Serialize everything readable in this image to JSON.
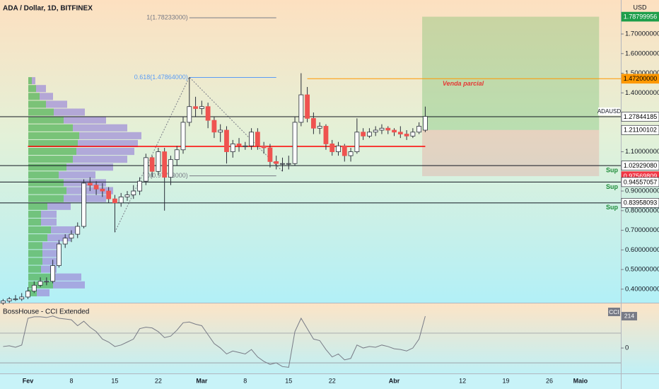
{
  "chart_data": [
    {
      "type": "candlestick",
      "title": "ADA / Dollar, 1D, BITFINEX",
      "unit": "USD",
      "symbol": "ADAUSD",
      "categories": [
        null,
        null,
        null,
        null,
        "Fev",
        null,
        null,
        null,
        null,
        null,
        null,
        "8",
        null,
        null,
        null,
        null,
        null,
        null,
        "15",
        null,
        null,
        null,
        null,
        null,
        null,
        "22",
        null,
        null,
        null,
        null,
        null,
        null,
        "Mar",
        null,
        null,
        null,
        null,
        null,
        null,
        "8",
        null,
        null,
        null,
        null,
        null,
        null,
        "15",
        null,
        null,
        null,
        null,
        null,
        null,
        "22",
        null,
        null,
        null,
        null,
        null,
        null,
        null,
        null,
        null,
        "Abr",
        null,
        null,
        null,
        null,
        null,
        null,
        null,
        null,
        null,
        null,
        "12",
        null,
        null,
        null,
        null,
        null,
        null,
        "19",
        null,
        null,
        null,
        null,
        null,
        null,
        "26",
        null,
        null,
        null,
        null,
        "Maio",
        null,
        null,
        null,
        null,
        null,
        null
      ],
      "open": [
        0.33,
        0.34,
        0.35,
        0.35,
        0.36,
        0.39,
        0.42,
        0.44,
        0.44,
        0.52,
        0.63,
        0.66,
        0.68,
        0.72,
        0.94,
        0.93,
        0.91,
        0.9,
        0.86,
        0.84,
        0.87,
        0.88,
        0.9,
        0.95,
        1.07,
        1.0,
        1.1,
        0.97,
        1.06,
        1.11,
        1.25,
        1.33,
        1.32,
        1.33,
        1.26,
        1.2,
        1.21,
        1.1,
        1.14,
        1.13,
        1.13,
        1.2,
        1.13,
        1.12,
        1.05,
        1.04,
        1.04,
        1.04,
        1.25,
        1.39,
        1.27,
        1.22,
        1.23,
        1.14,
        1.1,
        1.13,
        1.08,
        1.1,
        1.2,
        1.18,
        1.2,
        1.21,
        1.22,
        1.21,
        1.2,
        1.19,
        1.18,
        1.2,
        1.21,
        null,
        null,
        null,
        null,
        null,
        null,
        null,
        null,
        null,
        null,
        null,
        null,
        null,
        null,
        null,
        null,
        null,
        null,
        null,
        null,
        null,
        null,
        null,
        null,
        null,
        null,
        null,
        null,
        null,
        null,
        null
      ],
      "high": [
        0.35,
        0.36,
        0.37,
        0.38,
        0.41,
        0.44,
        0.46,
        0.46,
        0.55,
        0.65,
        0.68,
        0.7,
        0.74,
        0.96,
        0.97,
        0.95,
        0.94,
        0.92,
        0.88,
        0.89,
        0.9,
        0.93,
        0.97,
        1.09,
        1.08,
        1.12,
        1.12,
        1.08,
        1.13,
        1.28,
        1.48,
        1.38,
        1.36,
        1.35,
        1.28,
        1.24,
        1.23,
        1.16,
        1.17,
        1.15,
        1.22,
        1.22,
        1.15,
        1.14,
        1.08,
        1.07,
        1.08,
        1.28,
        1.5,
        1.43,
        1.3,
        1.25,
        1.24,
        1.16,
        1.15,
        1.14,
        1.12,
        1.27,
        1.22,
        1.22,
        1.23,
        1.24,
        1.23,
        1.22,
        1.23,
        1.21,
        1.22,
        1.25,
        1.33,
        null,
        null,
        null,
        null,
        null,
        null,
        null,
        null,
        null,
        null,
        null,
        null,
        null,
        null,
        null,
        null,
        null,
        null,
        null,
        null,
        null,
        null,
        null,
        null,
        null,
        null,
        null,
        null,
        null,
        null,
        null
      ],
      "low": [
        0.32,
        0.33,
        0.34,
        0.34,
        0.35,
        0.38,
        0.41,
        0.42,
        0.43,
        0.51,
        0.61,
        0.64,
        0.66,
        0.71,
        0.9,
        0.88,
        0.87,
        0.84,
        0.69,
        0.82,
        0.85,
        0.86,
        0.88,
        0.93,
        0.97,
        0.98,
        0.8,
        0.93,
        1.03,
        1.09,
        1.23,
        1.28,
        1.29,
        1.22,
        1.17,
        1.15,
        1.04,
        1.07,
        1.1,
        1.11,
        1.11,
        1.11,
        1.09,
        1.02,
        1.01,
        1.0,
        1.01,
        1.03,
        1.23,
        1.25,
        1.19,
        1.19,
        1.11,
        1.08,
        1.08,
        1.05,
        1.05,
        1.09,
        1.16,
        1.17,
        1.18,
        1.19,
        1.19,
        1.18,
        1.17,
        1.16,
        1.17,
        1.19,
        1.2,
        null,
        null,
        null,
        null,
        null,
        null,
        null,
        null,
        null,
        null,
        null,
        null,
        null,
        null,
        null,
        null,
        null,
        null,
        null,
        null,
        null,
        null,
        null,
        null,
        null,
        null,
        null,
        null,
        null,
        null,
        null
      ],
      "close": [
        0.34,
        0.35,
        0.35,
        0.36,
        0.39,
        0.42,
        0.44,
        0.44,
        0.52,
        0.63,
        0.66,
        0.68,
        0.72,
        0.94,
        0.93,
        0.91,
        0.9,
        0.86,
        0.84,
        0.87,
        0.88,
        0.9,
        0.95,
        1.07,
        1.0,
        1.1,
        0.97,
        1.06,
        1.11,
        1.25,
        1.33,
        1.32,
        1.33,
        1.26,
        1.2,
        1.21,
        1.1,
        1.14,
        1.13,
        1.13,
        1.2,
        1.13,
        1.12,
        1.05,
        1.04,
        1.04,
        1.04,
        1.25,
        1.39,
        1.27,
        1.22,
        1.23,
        1.14,
        1.1,
        1.13,
        1.08,
        1.1,
        1.2,
        1.18,
        1.2,
        1.21,
        1.22,
        1.21,
        1.2,
        1.19,
        1.18,
        1.2,
        1.23,
        1.28,
        null,
        null,
        null,
        null,
        null,
        null,
        null,
        null,
        null,
        null,
        null,
        null,
        null,
        null,
        null,
        null,
        null,
        null,
        null,
        null,
        null,
        null,
        null,
        null,
        null,
        null,
        null,
        null,
        null,
        null,
        null
      ],
      "up_color": "#ffffff",
      "down_color": "#ef5350",
      "wick_color": "#2a2e39",
      "ylim": [
        0.331,
        1.873
      ],
      "yticks": [
        {
          "value": 1.7,
          "label": "1.70000000"
        },
        {
          "value": 1.6,
          "label": "1.60000000"
        },
        {
          "value": 1.5,
          "label": "1.50000000"
        },
        {
          "value": 1.4,
          "label": "1.40000000"
        },
        {
          "value": 1.1,
          "label": "1.10000000"
        },
        {
          "value": 0.9,
          "label": "0.90000000"
        },
        {
          "value": 0.8,
          "label": "0.80000000"
        },
        {
          "value": 0.7,
          "label": "0.70000000"
        },
        {
          "value": 0.6,
          "label": "0.60000000"
        },
        {
          "value": 0.5,
          "label": "0.50000000"
        },
        {
          "value": 0.4,
          "label": "0.40000000"
        }
      ],
      "price_labels": [
        {
          "value": 1.78799956,
          "bg": "#1e9e4a",
          "fg": "#ffffff"
        },
        {
          "value": 1.472,
          "label": "1.47200000",
          "bg": "#ff9800",
          "fg": "#000000",
          "line": "#ff9800"
        },
        {
          "value": 1.27844185,
          "bg": "#ffffff",
          "fg": "#000000",
          "line": "#131722"
        },
        {
          "value": 1.21100102,
          "bg": "#ffffff",
          "fg": "#000000"
        },
        {
          "value": 1.0292908,
          "label": "1.02929080",
          "bg": "#ffffff",
          "fg": "#000000",
          "line": "#131722",
          "text": "Sup"
        },
        {
          "value": 0.97569809,
          "bg": "#f23645",
          "fg": "#ffffff"
        },
        {
          "value": 0.94557057,
          "bg": "#ffffff",
          "fg": "#000000",
          "line": "#131722",
          "text": "Sup"
        },
        {
          "value": 0.83958093,
          "bg": "#ffffff",
          "fg": "#000000",
          "line": "#131722",
          "text": "Sup"
        }
      ],
      "fib": [
        {
          "value": 1.78233,
          "label": "1(1.78233000)",
          "color": "#787b86"
        },
        {
          "value": 1.47864,
          "label": "0.618(1.47864000)",
          "color": "#5b9cf6"
        },
        {
          "value": 0.97733,
          "label": "0(0.97733000)",
          "color": "#787b86"
        }
      ],
      "red_line": {
        "value": 1.127,
        "color": "#ff0000"
      },
      "note": {
        "text": "Venda parcial",
        "value": 1.445,
        "color": "#e53935"
      },
      "volume_profile": {
        "bins": [
          0.36,
          0.4,
          0.44,
          0.48,
          0.52,
          0.56,
          0.6,
          0.64,
          0.68,
          0.72,
          0.76,
          0.8,
          0.84,
          0.88,
          0.92,
          0.96,
          1.0,
          1.04,
          1.08,
          1.12,
          1.16,
          1.2,
          1.24,
          1.28,
          1.32,
          1.36,
          1.4,
          1.44,
          1.48
        ],
        "up": [
          12,
          35,
          33,
          18,
          20,
          20,
          20,
          27,
          32,
          18,
          18,
          27,
          50,
          54,
          50,
          43,
          54,
          63,
          68,
          70,
          72,
          63,
          50,
          36,
          25,
          16,
          11,
          5
        ],
        "down": [
          18,
          45,
          42,
          22,
          25,
          25,
          25,
          33,
          38,
          22,
          22,
          33,
          60,
          66,
          60,
          52,
          66,
          77,
          82,
          85,
          88,
          77,
          60,
          44,
          30,
          19,
          14,
          5
        ],
        "up_color": "#4caf50",
        "down_color": "#9c8ad8"
      }
    },
    {
      "type": "line",
      "title": "BossHouse - CCI Extended",
      "name": "CCI",
      "color": "#787b86",
      "values": [
        10,
        15,
        5,
        20,
        200,
        210,
        210,
        205,
        215,
        200,
        195,
        190,
        150,
        180,
        140,
        110,
        60,
        40,
        10,
        20,
        40,
        60,
        130,
        140,
        135,
        110,
        70,
        80,
        120,
        170,
        175,
        160,
        150,
        90,
        30,
        0,
        -40,
        -20,
        -30,
        -40,
        -10,
        -60,
        -90,
        -110,
        -100,
        -125,
        -130,
        110,
        200,
        130,
        60,
        50,
        -10,
        -60,
        -40,
        -80,
        -70,
        20,
        0,
        10,
        5,
        20,
        10,
        -5,
        -10,
        -20,
        0,
        60,
        214,
        null,
        null,
        null,
        null,
        null,
        null,
        null,
        null,
        null,
        null,
        null,
        null,
        null,
        null,
        null,
        null,
        null,
        null,
        null,
        null,
        null,
        null,
        null,
        null,
        null,
        null,
        null,
        null,
        null,
        null,
        null
      ],
      "ylim": [
        -171,
        295
      ],
      "yticks": [
        0
      ],
      "levels": [
        100,
        -100
      ]
    }
  ]
}
